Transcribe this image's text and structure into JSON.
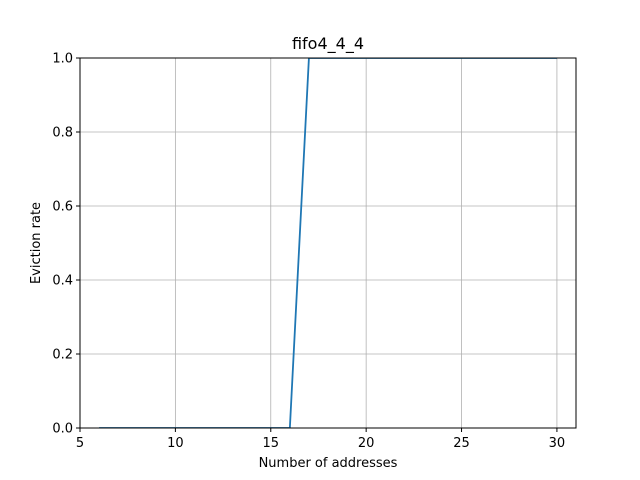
{
  "chart_data": {
    "type": "line",
    "title": "fifo4_4_4",
    "xlabel": "Number of addresses",
    "ylabel": "Eviction rate",
    "xlim": [
      5,
      31
    ],
    "ylim": [
      0,
      1
    ],
    "xticks": [
      5,
      10,
      15,
      20,
      25,
      30
    ],
    "yticks": [
      0.0,
      0.2,
      0.4,
      0.6,
      0.8,
      1.0
    ],
    "xtick_labels": [
      "5",
      "10",
      "15",
      "20",
      "25",
      "30"
    ],
    "ytick_labels": [
      "0.0",
      "0.2",
      "0.4",
      "0.6",
      "0.8",
      "1.0"
    ],
    "grid": true,
    "series": [
      {
        "color": "#1f77b4",
        "x": [
          6,
          7,
          8,
          9,
          10,
          11,
          12,
          13,
          14,
          15,
          16,
          17,
          18,
          19,
          20,
          21,
          22,
          23,
          24,
          25,
          26,
          27,
          28,
          29,
          30
        ],
        "y": [
          0,
          0,
          0,
          0,
          0,
          0,
          0,
          0,
          0,
          0,
          0,
          1,
          1,
          1,
          1,
          1,
          1,
          1,
          1,
          1,
          1,
          1,
          1,
          1,
          1
        ]
      }
    ]
  }
}
